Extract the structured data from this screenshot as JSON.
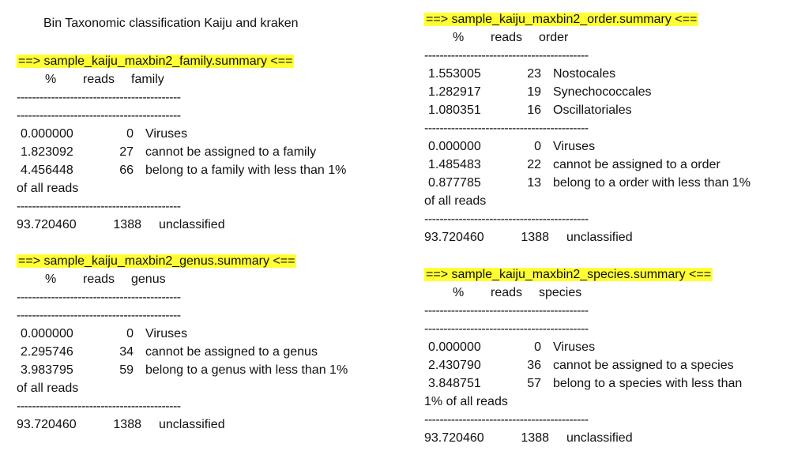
{
  "title": "Bin Taxonomic classification Kaiju and kraken",
  "dashes": "-------------------------------------------",
  "family": {
    "header": "==> sample_kaiju_maxbin2_family.summary <==",
    "cols": [
      "%",
      "reads",
      "family"
    ],
    "rows": [
      {
        "pct": "0.000000",
        "reads": "0",
        "label": "Viruses"
      },
      {
        "pct": "1.823092",
        "reads": "27",
        "label": "cannot be assigned to a family"
      },
      {
        "pct": "4.456448",
        "reads": "66",
        "label": "belong to a family with less than 1%",
        "cont": "of all reads"
      }
    ],
    "unclassified": {
      "pct": "93.720460",
      "reads": "1388",
      "label": "unclassified"
    }
  },
  "genus": {
    "header": "==> sample_kaiju_maxbin2_genus.summary <==",
    "cols": [
      "%",
      "reads",
      "genus"
    ],
    "rows": [
      {
        "pct": "0.000000",
        "reads": "0",
        "label": "Viruses"
      },
      {
        "pct": "2.295746",
        "reads": "34",
        "label": "cannot be assigned to a genus"
      },
      {
        "pct": "3.983795",
        "reads": "59",
        "label": "belong to a genus with less than 1%",
        "cont": "of all reads"
      }
    ],
    "unclassified": {
      "pct": "93.720460",
      "reads": "1388",
      "label": "unclassified"
    }
  },
  "order": {
    "header": "==> sample_kaiju_maxbin2_order.summary <==",
    "cols": [
      "%",
      "reads",
      "order"
    ],
    "top": [
      {
        "pct": "1.553005",
        "reads": "23",
        "label": "Nostocales"
      },
      {
        "pct": "1.282917",
        "reads": "19",
        "label": "Synechococcales"
      },
      {
        "pct": "1.080351",
        "reads": "16",
        "label": "Oscillatoriales"
      }
    ],
    "rows": [
      {
        "pct": "0.000000",
        "reads": "0",
        "label": "Viruses"
      },
      {
        "pct": "1.485483",
        "reads": "22",
        "label": "cannot be assigned to a order"
      },
      {
        "pct": "0.877785",
        "reads": "13",
        "label": "belong to a order with less than 1%",
        "cont": "of all reads"
      }
    ],
    "unclassified": {
      "pct": "93.720460",
      "reads": "1388",
      "label": "unclassified"
    }
  },
  "species": {
    "header": "==> sample_kaiju_maxbin2_species.summary <==",
    "cols": [
      "%",
      "reads",
      "species"
    ],
    "rows": [
      {
        "pct": "0.000000",
        "reads": "0",
        "label": "Viruses"
      },
      {
        "pct": "2.430790",
        "reads": "36",
        "label": "cannot be assigned to a species"
      },
      {
        "pct": "3.848751",
        "reads": "57",
        "label": "belong to a species with less than",
        "cont": "1% of all reads"
      }
    ],
    "unclassified": {
      "pct": "93.720460",
      "reads": "1388",
      "label": "unclassified"
    }
  }
}
